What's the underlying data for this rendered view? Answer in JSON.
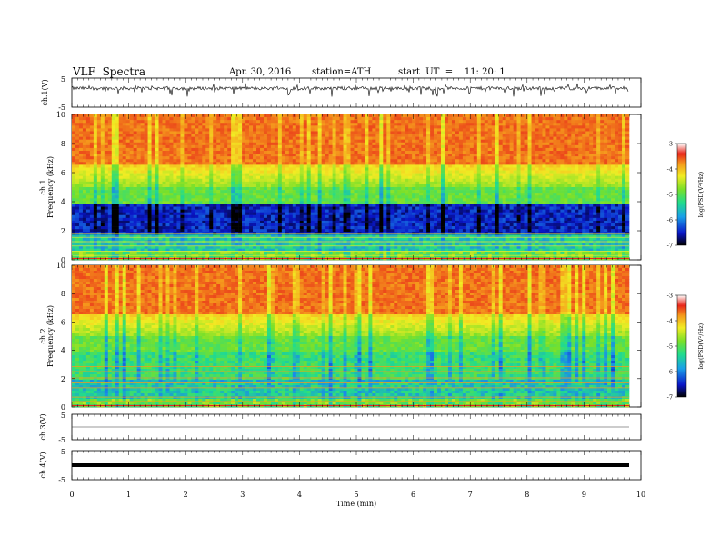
{
  "header": {
    "title": "VLF  Spectra",
    "date": "Apr. 30, 2016",
    "station": "station=ATH",
    "start": "start  UT  =    11: 20: 1"
  },
  "chart_data": [
    {
      "type": "line",
      "id": "ch1",
      "ylabel": "ch.1(V)",
      "yticks": [
        "5",
        "-5"
      ],
      "ylim": [
        -5,
        5
      ],
      "xlim": [
        0,
        10
      ],
      "description_values": {
        "baseline": 1.5,
        "noise_range": [
          -1.5,
          2.5
        ]
      }
    },
    {
      "type": "heatmap",
      "id": "ch1_spec",
      "ylabel": "ch.1\nFrequency  (kHz)",
      "ylabel_line1": "ch.1",
      "ylabel_line2": "Frequency  (kHz)",
      "yticks": [
        "0",
        "2",
        "4",
        "6",
        "8",
        "10"
      ],
      "ylim": [
        0,
        10
      ],
      "xlim": [
        0,
        9.8
      ],
      "colorbar": {
        "label": "log(PSD(V²/Hz)",
        "ticks": [
          "-3",
          "-4",
          "-5",
          "-6",
          "-7"
        ],
        "range": [
          -7,
          -3
        ]
      }
    },
    {
      "type": "heatmap",
      "id": "ch2_spec",
      "ylabel_line1": "ch.2",
      "ylabel_line2": "Frequency  (kHz)",
      "yticks": [
        "0",
        "2",
        "4",
        "6",
        "8",
        "10"
      ],
      "ylim": [
        0,
        10
      ],
      "xlim": [
        0,
        9.8
      ],
      "colorbar": {
        "label": "log(PSD(V²/Hz)",
        "ticks": [
          "-3",
          "-4",
          "-5",
          "-6",
          "-7"
        ],
        "range": [
          -7,
          -3
        ]
      }
    },
    {
      "type": "line",
      "id": "ch3",
      "ylabel": "ch.3(V)",
      "yticks": [
        "5",
        "-5"
      ],
      "ylim": [
        -5,
        5
      ],
      "xlim": [
        0,
        10
      ],
      "baseline": 0
    },
    {
      "type": "line",
      "id": "ch4",
      "ylabel": "ch.4(V)",
      "yticks": [
        "5",
        "-5"
      ],
      "ylim": [
        -5,
        5
      ],
      "xlim": [
        0,
        10
      ],
      "baseline": 0
    }
  ],
  "xaxis": {
    "label": "Time  (min)",
    "ticks": [
      "0",
      "1",
      "2",
      "3",
      "4",
      "5",
      "6",
      "7",
      "8",
      "9",
      "10"
    ]
  },
  "colors": {
    "red": "#e8261a",
    "orange": "#f59a1c",
    "yellow": "#f2ec23",
    "green": "#22d84a",
    "cyan": "#3fd6e8",
    "blue": "#1432d8",
    "navy": "#000b5e"
  }
}
